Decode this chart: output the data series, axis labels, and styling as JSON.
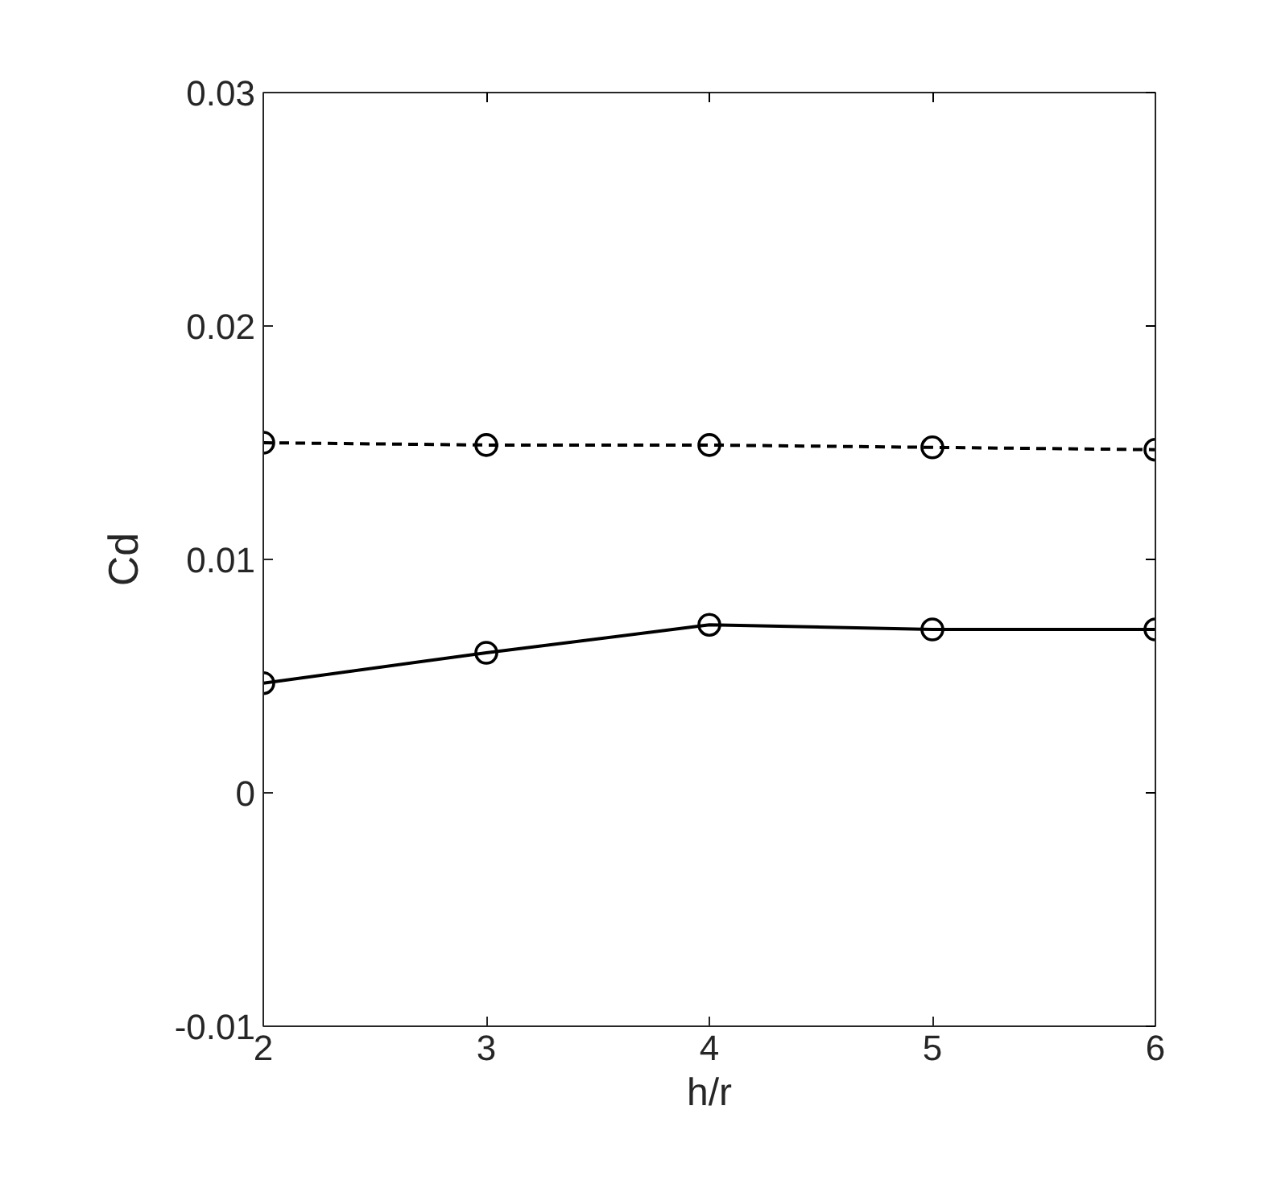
{
  "chart_data": {
    "type": "line",
    "xlabel": "h/r",
    "ylabel": "Cd",
    "x": [
      2,
      3,
      4,
      5,
      6
    ],
    "series": [
      {
        "color": "#000000",
        "line_style": "dashed",
        "values": [
          0.015,
          0.0149,
          0.0149,
          0.0148,
          0.0147
        ]
      },
      {
        "color": "#000000",
        "line_style": "solid",
        "values": [
          0.0047,
          0.006,
          0.0072,
          0.007,
          0.007
        ]
      }
    ],
    "marker": "circle",
    "xlim": [
      2,
      6
    ],
    "ylim": [
      -0.01,
      0.03
    ],
    "xticks": [
      2,
      3,
      4,
      5,
      6
    ],
    "yticks": [
      -0.01,
      0,
      0.01,
      0.02,
      0.03
    ],
    "grid": false
  }
}
